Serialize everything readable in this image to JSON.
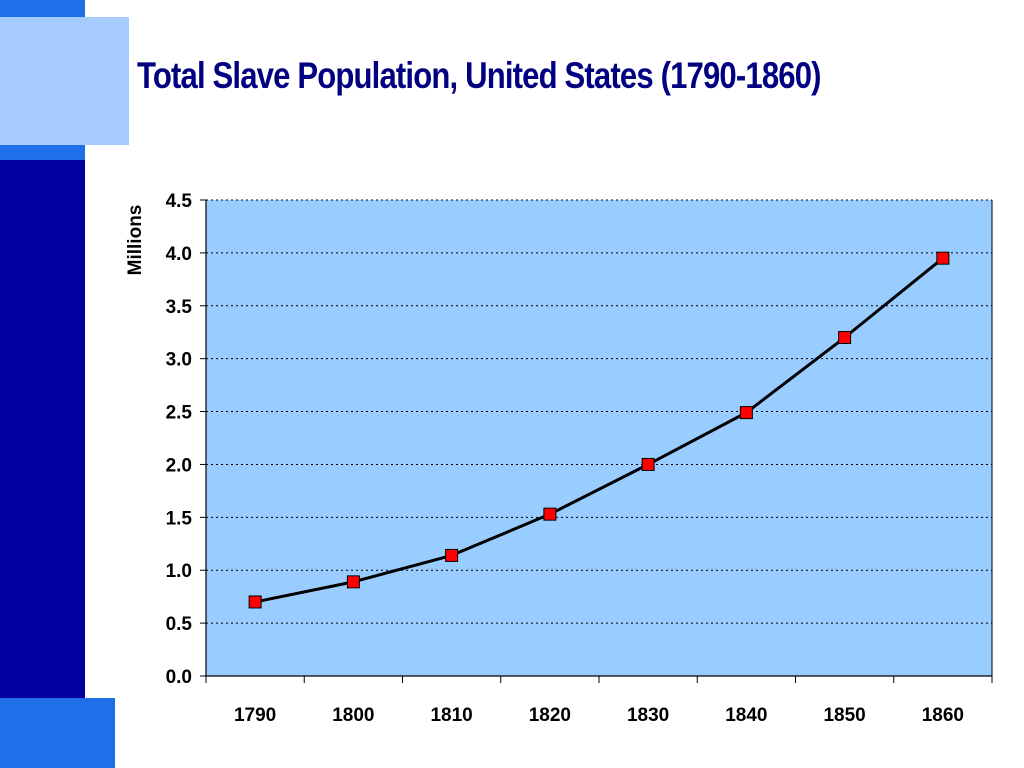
{
  "slide": {
    "title": "Total Slave Population, United States (1790-1860)"
  },
  "colors": {
    "plot_background": "#99ccff",
    "line": "#000000",
    "marker": "#ff0000",
    "accent_navy": "#0000a0",
    "accent_blue": "#1e6fe8",
    "accent_light": "#a6ccff",
    "title": "#000080"
  },
  "chart_data": {
    "type": "line",
    "title": "Total Slave Population, United States (1790-1860)",
    "xlabel": "",
    "ylabel": "Millions",
    "x": [
      "1790",
      "1800",
      "1810",
      "1820",
      "1830",
      "1840",
      "1850",
      "1860"
    ],
    "series": [
      {
        "values": [
          0.7,
          0.89,
          1.14,
          1.53,
          2.0,
          2.49,
          3.2,
          3.95
        ]
      }
    ],
    "ylim": [
      0,
      4.5
    ],
    "yticks": [
      "0.0",
      "0.5",
      "1.0",
      "1.5",
      "2.0",
      "2.5",
      "3.0",
      "3.5",
      "4.0",
      "4.5"
    ],
    "grid": true,
    "grid_style": "dotted",
    "legend": "none",
    "marker": "square"
  }
}
